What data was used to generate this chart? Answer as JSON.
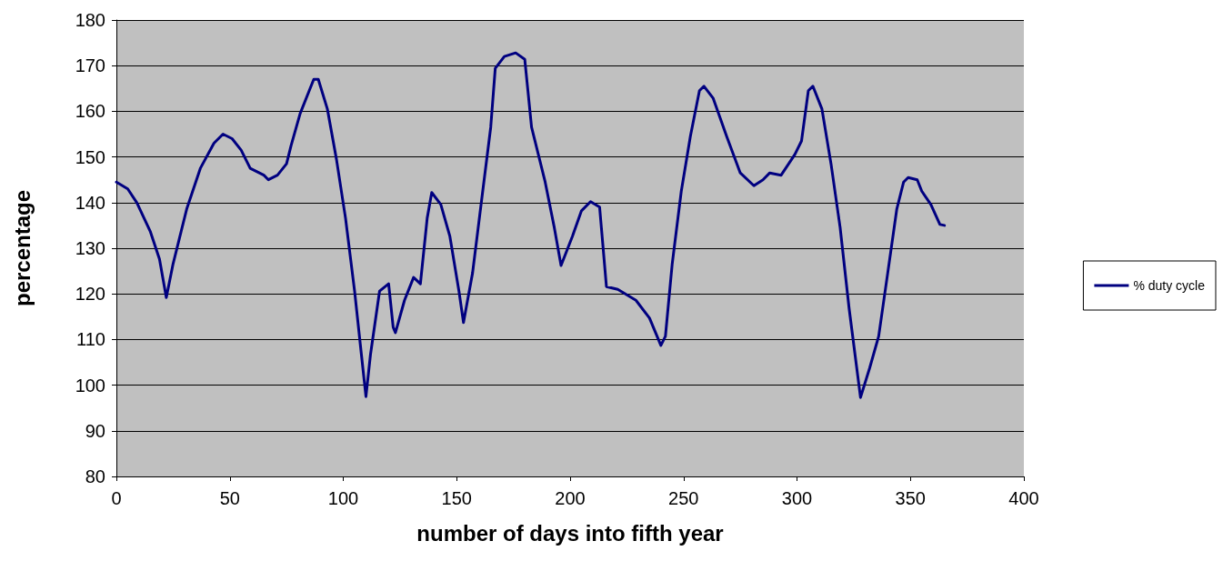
{
  "chart_data": {
    "type": "line",
    "xlabel": "number of days into fifth year",
    "ylabel": "percentage",
    "xlim": [
      0,
      400
    ],
    "xticks": [
      0,
      50,
      100,
      150,
      200,
      250,
      300,
      350,
      400
    ],
    "ylim": [
      80,
      180
    ],
    "yticks": [
      80,
      90,
      100,
      110,
      120,
      130,
      140,
      150,
      160,
      170,
      180
    ],
    "grid": "y",
    "legend": "right",
    "marker": "none",
    "line_style": "solid",
    "series": [
      {
        "name": "% duty cycle",
        "color": "#000080",
        "x": [
          0,
          5,
          9,
          15,
          19,
          22,
          25,
          31,
          37,
          43,
          47,
          51,
          55,
          59,
          65,
          67,
          71,
          75,
          77,
          81,
          85,
          87,
          89,
          93,
          97,
          101,
          105,
          108,
          110,
          112,
          116,
          120,
          122,
          123,
          127,
          131,
          134,
          137,
          139,
          143,
          147,
          151,
          153,
          157,
          161,
          165,
          167,
          171,
          176,
          180,
          183,
          189,
          193,
          196,
          201,
          205,
          209,
          213,
          216,
          221,
          229,
          235,
          240,
          242,
          245,
          249,
          253,
          257,
          259,
          263,
          269,
          275,
          281,
          285,
          288,
          293,
          299,
          302,
          305,
          307,
          311,
          315,
          319,
          323,
          328,
          332,
          336,
          340,
          344,
          347,
          349,
          353,
          355,
          359,
          363,
          365
        ],
        "values": [
          144.5,
          143,
          140,
          133.6,
          127.6,
          119.2,
          126.6,
          138.6,
          147.5,
          153,
          155,
          154,
          151.5,
          147.5,
          146,
          145,
          146,
          148.5,
          152.5,
          159.5,
          164.5,
          167,
          167,
          160.5,
          149.5,
          136.6,
          120.6,
          106.7,
          97.5,
          106.7,
          120.6,
          122.2,
          112.7,
          111.5,
          118.6,
          123.6,
          122.2,
          136.6,
          142.2,
          139.6,
          132.6,
          120.6,
          113.7,
          124.6,
          140.6,
          156.5,
          169.4,
          172,
          172.8,
          171.4,
          156.5,
          144.5,
          134.6,
          126.2,
          132.6,
          138.2,
          140.2,
          139,
          121.6,
          121,
          118.6,
          114.7,
          108.7,
          110.7,
          126.6,
          142.5,
          154.5,
          164.5,
          165.5,
          162.9,
          154.5,
          146.5,
          143.7,
          145,
          146.5,
          146,
          150.5,
          153.5,
          164.5,
          165.5,
          160.5,
          148.5,
          134.6,
          116.7,
          97.3,
          103.7,
          110.7,
          124.6,
          138.6,
          144.5,
          145.5,
          145,
          142.5,
          139.6,
          135.2,
          135
        ]
      }
    ]
  }
}
